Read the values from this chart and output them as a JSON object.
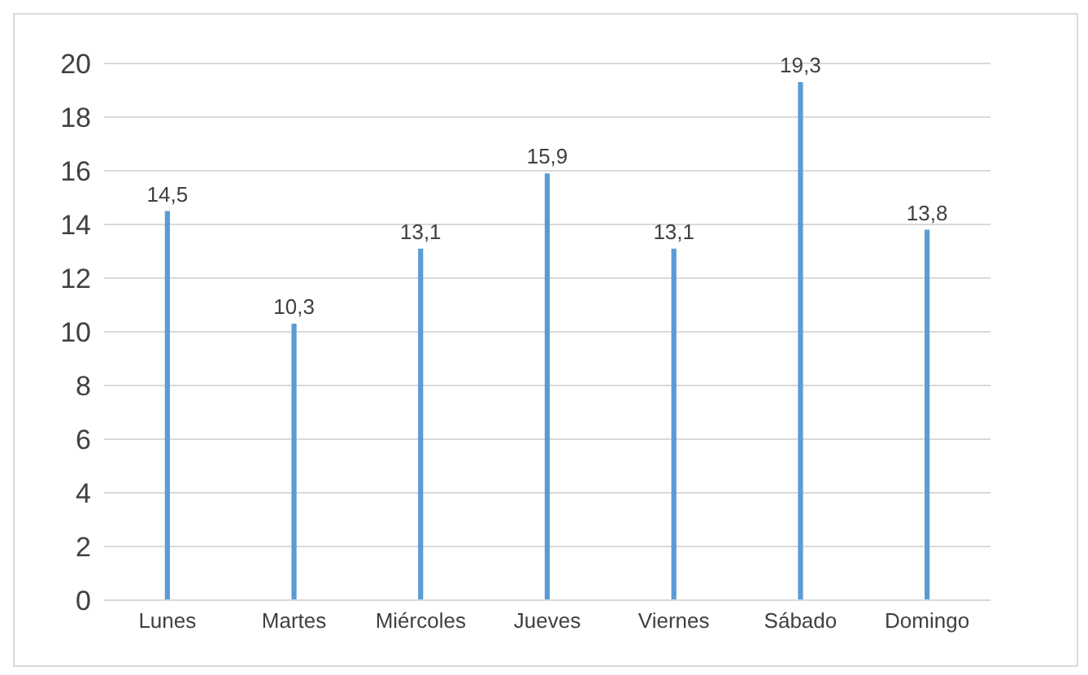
{
  "chart_data": {
    "type": "bar",
    "categories": [
      "Lunes",
      "Martes",
      "Miércoles",
      "Jueves",
      "Viernes",
      "Sábado",
      "Domingo"
    ],
    "values": [
      14.5,
      10.3,
      13.1,
      15.9,
      13.1,
      19.3,
      13.8
    ],
    "value_labels": [
      "14,5",
      "10,3",
      "13,1",
      "15,9",
      "13,1",
      "19,3",
      "13,8"
    ],
    "color": "#5b9bd5",
    "ylim": [
      0,
      20
    ],
    "yticks": [
      0,
      2,
      4,
      6,
      8,
      10,
      12,
      14,
      16,
      18,
      20
    ],
    "grid": "y"
  }
}
